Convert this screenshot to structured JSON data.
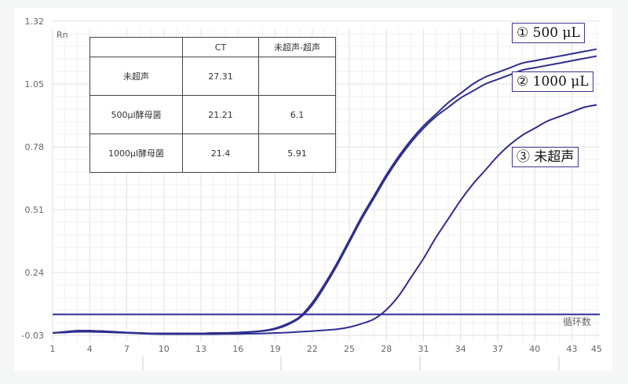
{
  "chart_data": {
    "type": "line",
    "ylabel": "Rn",
    "xlabel": "循环数",
    "ylim": [
      -0.03,
      1.32
    ],
    "xlim": [
      1,
      45
    ],
    "y_ticks": [
      "1.32",
      "1.05",
      "0.78",
      "0.51",
      "0.24",
      "-0.03"
    ],
    "x_ticks": [
      "1",
      "4",
      "7",
      "10",
      "13",
      "16",
      "19",
      "22",
      "25",
      "28",
      "31",
      "34",
      "37",
      "40",
      "43",
      "45"
    ],
    "grid": true,
    "threshold": 0.06,
    "line_color": "#2e2e8f",
    "x": [
      1,
      2,
      3,
      4,
      5,
      6,
      7,
      8,
      9,
      10,
      11,
      12,
      13,
      14,
      15,
      16,
      17,
      18,
      19,
      20,
      21,
      22,
      23,
      24,
      25,
      26,
      27,
      28,
      29,
      30,
      31,
      32,
      33,
      34,
      35,
      36,
      37,
      38,
      39,
      40,
      41,
      42,
      43,
      44,
      45
    ],
    "series": [
      {
        "name": "① 500 μL",
        "values": [
          -0.02,
          -0.015,
          -0.01,
          -0.01,
          -0.012,
          -0.015,
          -0.018,
          -0.02,
          -0.022,
          -0.022,
          -0.022,
          -0.022,
          -0.022,
          -0.02,
          -0.02,
          -0.018,
          -0.015,
          -0.01,
          0.0,
          0.02,
          0.05,
          0.11,
          0.19,
          0.28,
          0.38,
          0.48,
          0.57,
          0.66,
          0.74,
          0.81,
          0.87,
          0.92,
          0.97,
          1.01,
          1.05,
          1.08,
          1.1,
          1.12,
          1.14,
          1.15,
          1.16,
          1.17,
          1.18,
          1.19,
          1.2
        ]
      },
      {
        "name": "② 1000 μL",
        "values": [
          -0.02,
          -0.015,
          -0.01,
          -0.01,
          -0.012,
          -0.015,
          -0.018,
          -0.02,
          -0.022,
          -0.022,
          -0.022,
          -0.022,
          -0.022,
          -0.02,
          -0.02,
          -0.018,
          -0.016,
          -0.012,
          -0.003,
          0.015,
          0.045,
          0.1,
          0.18,
          0.27,
          0.37,
          0.47,
          0.56,
          0.65,
          0.73,
          0.8,
          0.86,
          0.91,
          0.95,
          0.99,
          1.02,
          1.05,
          1.07,
          1.09,
          1.11,
          1.12,
          1.13,
          1.14,
          1.15,
          1.16,
          1.17
        ]
      },
      {
        "name": "③ 未超声",
        "values": [
          -0.02,
          -0.018,
          -0.015,
          -0.015,
          -0.016,
          -0.018,
          -0.02,
          -0.022,
          -0.024,
          -0.025,
          -0.025,
          -0.025,
          -0.025,
          -0.025,
          -0.024,
          -0.024,
          -0.023,
          -0.022,
          -0.02,
          -0.018,
          -0.015,
          -0.012,
          -0.008,
          -0.004,
          0.005,
          0.02,
          0.04,
          0.08,
          0.14,
          0.22,
          0.3,
          0.39,
          0.47,
          0.55,
          0.62,
          0.68,
          0.74,
          0.79,
          0.83,
          0.86,
          0.89,
          0.91,
          0.93,
          0.95,
          0.96
        ]
      }
    ],
    "table": {
      "headers": [
        "",
        "CT",
        "未超声-超声"
      ],
      "rows": [
        [
          "未超声",
          "27.31",
          ""
        ],
        [
          "500μl酵母菌",
          "21.21",
          "6.1"
        ],
        [
          "1000μl酵母菌",
          "21.4",
          "5.91"
        ]
      ]
    }
  }
}
